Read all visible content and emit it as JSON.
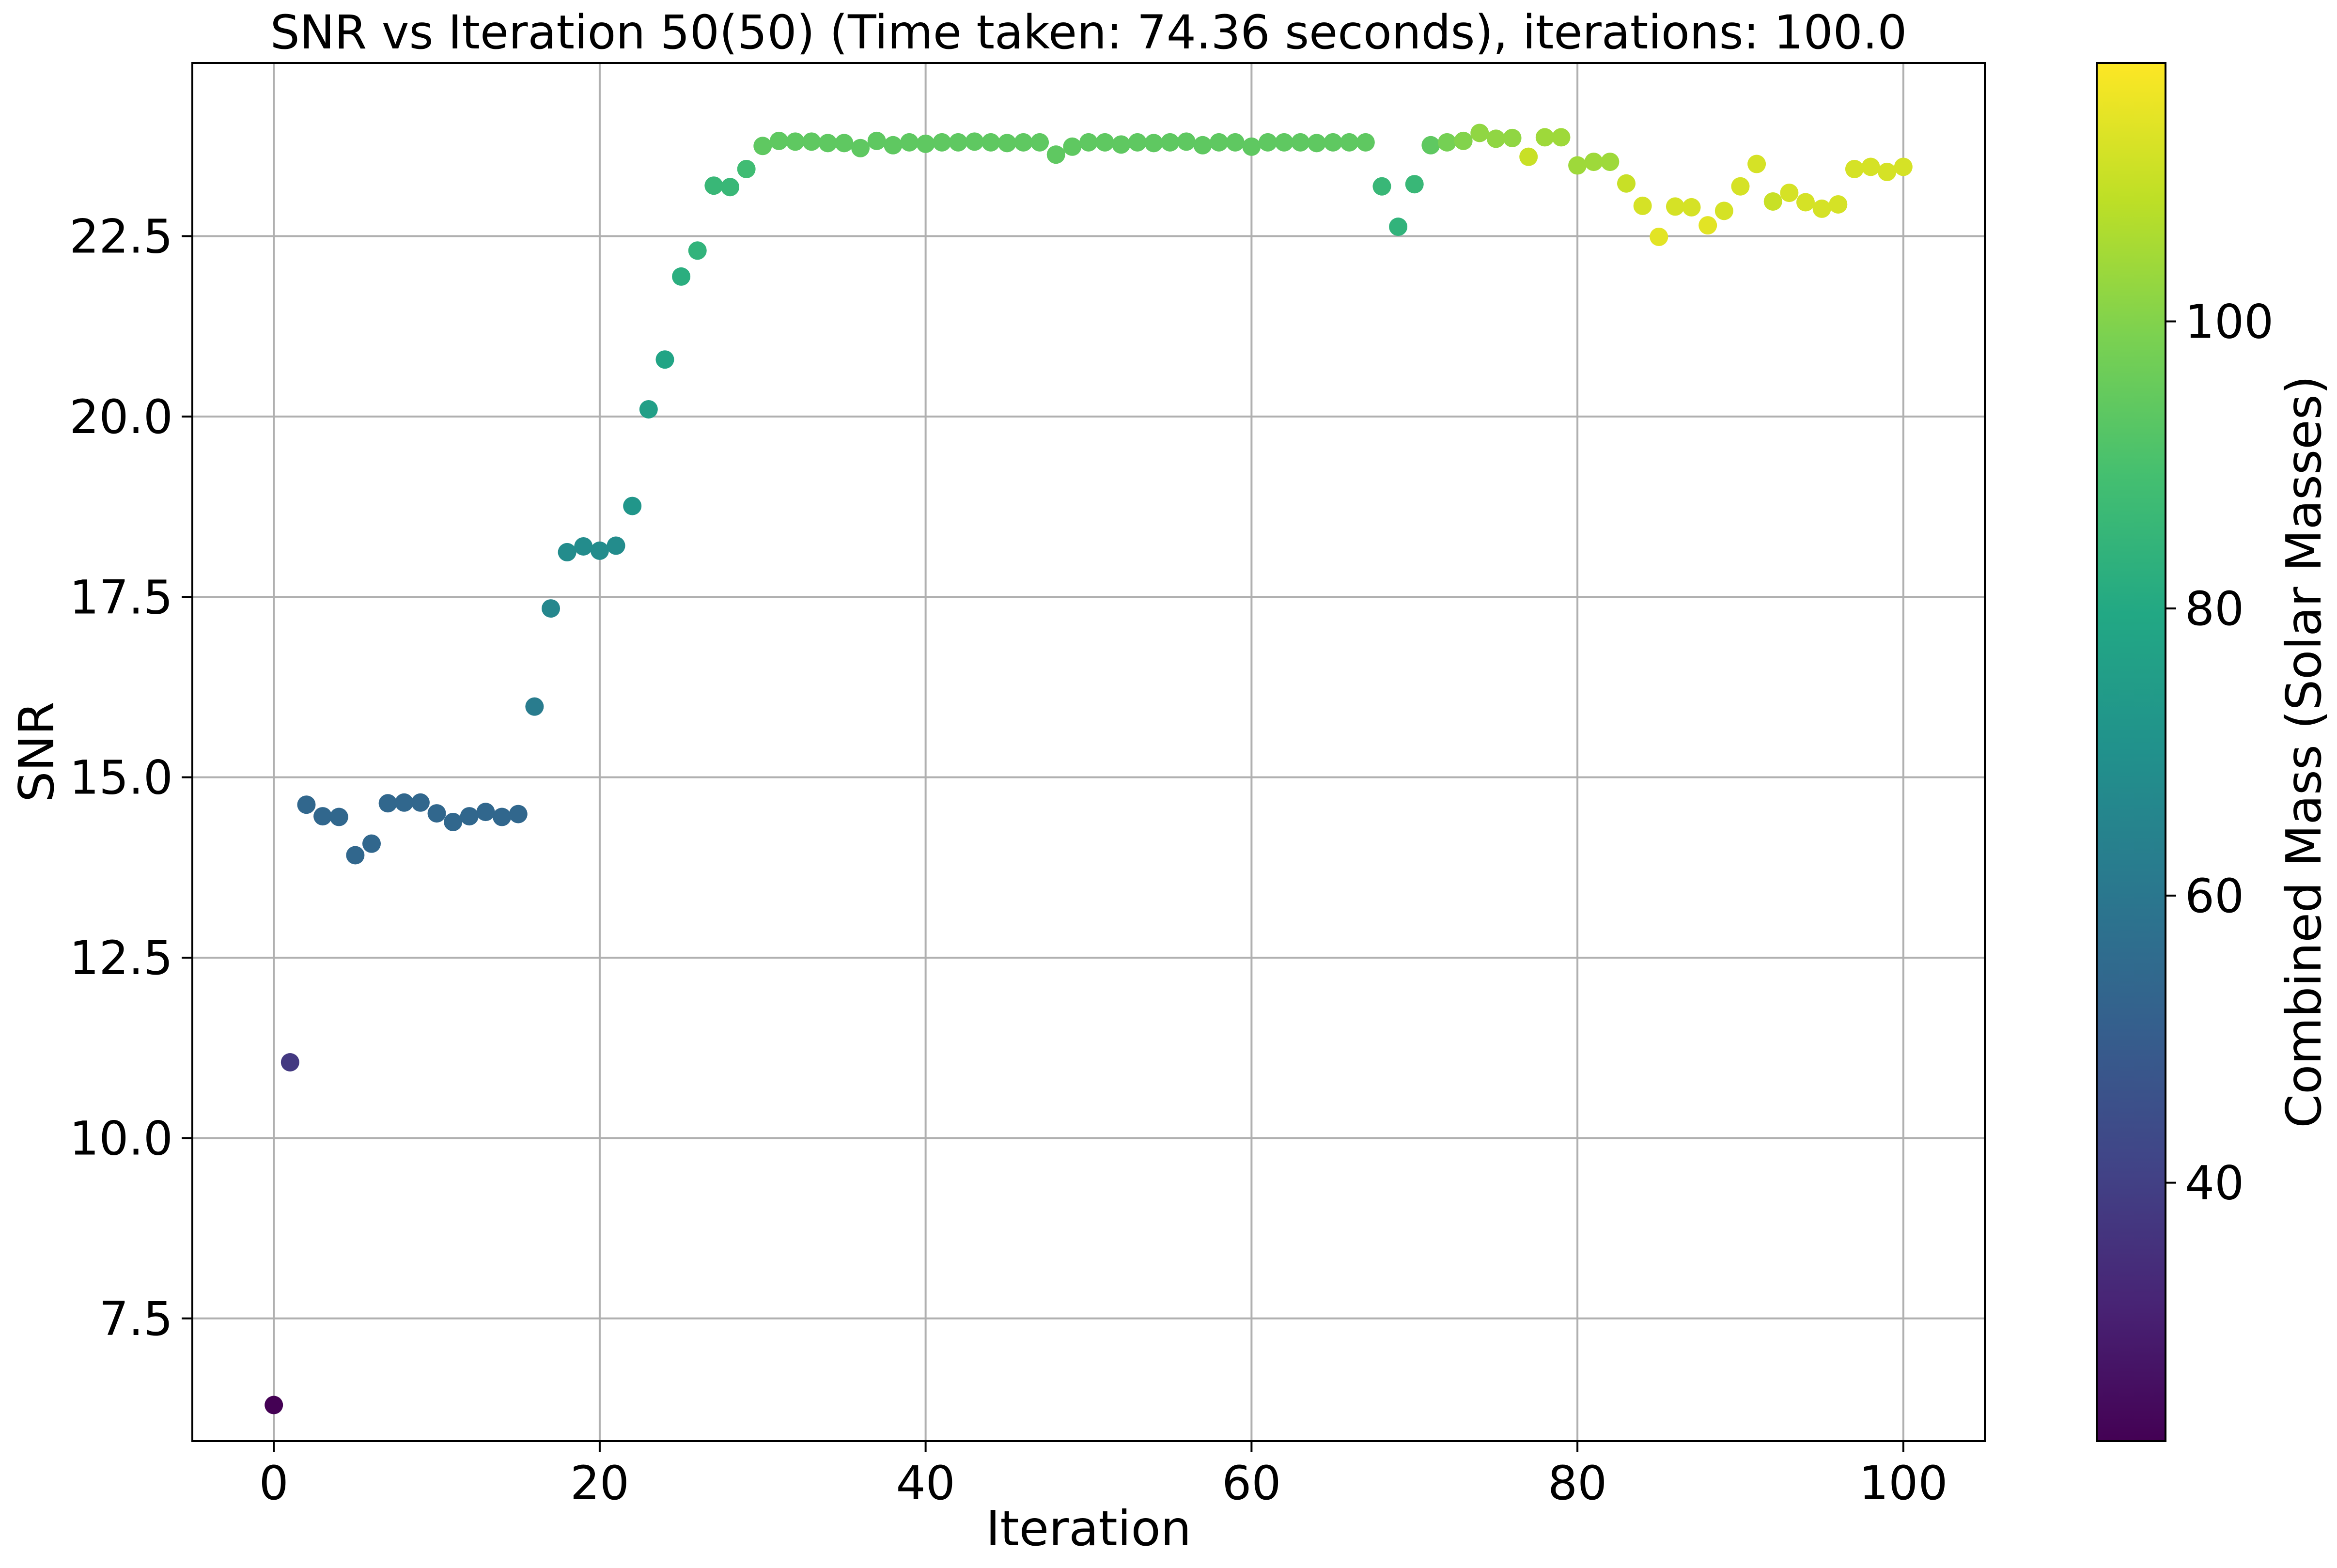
{
  "chart_data": {
    "type": "scatter",
    "title": "SNR vs Iteration 50(50) (Time taken: 74.36 seconds), iterations: 100.0",
    "xlabel": "Iteration",
    "ylabel": "SNR",
    "xlim": [
      -5,
      105
    ],
    "ylim": [
      5.8,
      24.9
    ],
    "xticks": [
      0,
      20,
      40,
      60,
      80,
      100
    ],
    "xtick_labels": [
      "0",
      "20",
      "40",
      "60",
      "80",
      "100"
    ],
    "yticks": [
      7.5,
      10.0,
      12.5,
      15.0,
      17.5,
      20.0,
      22.5
    ],
    "ytick_labels": [
      "7.5",
      "10.0",
      "12.5",
      "15.0",
      "17.5",
      "20.0",
      "22.5"
    ],
    "grid": true,
    "colormap": "viridis",
    "colorbar": {
      "label": "Combined Mass (Solar Masses)",
      "range": [
        22,
        118
      ],
      "ticks": [
        40,
        60,
        80,
        100
      ],
      "tick_labels": [
        "40",
        "60",
        "80",
        "100"
      ]
    },
    "x": [
      0,
      1,
      2,
      3,
      4,
      5,
      6,
      7,
      8,
      9,
      10,
      11,
      12,
      13,
      14,
      15,
      16,
      17,
      18,
      19,
      20,
      21,
      22,
      23,
      24,
      25,
      26,
      27,
      28,
      29,
      30,
      31,
      32,
      33,
      34,
      35,
      36,
      37,
      38,
      39,
      40,
      41,
      42,
      43,
      44,
      45,
      46,
      47,
      48,
      49,
      50,
      51,
      52,
      53,
      54,
      55,
      56,
      57,
      58,
      59,
      60,
      61,
      62,
      63,
      64,
      65,
      66,
      67,
      68,
      69,
      70,
      71,
      72,
      73,
      74,
      75,
      76,
      77,
      78,
      79,
      80,
      81,
      82,
      83,
      84,
      85,
      86,
      87,
      88,
      89,
      90,
      91,
      92,
      93,
      94,
      95,
      96,
      97,
      98,
      99,
      100
    ],
    "y": [
      6.3,
      11.05,
      14.62,
      14.46,
      14.45,
      13.92,
      14.08,
      14.64,
      14.65,
      14.65,
      14.5,
      14.38,
      14.46,
      14.52,
      14.45,
      14.49,
      15.98,
      17.34,
      18.12,
      18.2,
      18.14,
      18.21,
      18.76,
      20.1,
      20.79,
      21.94,
      22.3,
      23.2,
      23.18,
      23.43,
      23.75,
      23.82,
      23.81,
      23.81,
      23.79,
      23.79,
      23.72,
      23.82,
      23.76,
      23.8,
      23.78,
      23.8,
      23.8,
      23.81,
      23.8,
      23.79,
      23.8,
      23.8,
      23.63,
      23.74,
      23.8,
      23.8,
      23.77,
      23.8,
      23.79,
      23.8,
      23.81,
      23.76,
      23.8,
      23.8,
      23.74,
      23.8,
      23.8,
      23.8,
      23.79,
      23.8,
      23.8,
      23.8,
      23.19,
      22.63,
      23.22,
      23.76,
      23.8,
      23.82,
      23.93,
      23.85,
      23.86,
      23.6,
      23.87,
      23.87,
      23.48,
      23.53,
      23.53,
      23.23,
      22.92,
      22.49,
      22.91,
      22.9,
      22.65,
      22.85,
      23.19,
      23.5,
      22.98,
      23.1,
      22.97,
      22.88,
      22.94,
      23.43,
      23.46,
      23.39,
      23.46
    ],
    "mass": [
      22,
      38,
      54,
      54,
      54,
      54,
      54,
      54,
      54,
      54,
      54,
      54,
      54,
      54,
      54,
      54,
      62,
      66,
      68,
      68,
      68,
      68,
      72,
      76,
      78,
      82,
      84,
      86,
      86,
      88,
      94,
      94,
      94,
      94,
      94,
      94,
      94,
      94,
      94,
      94,
      94,
      94,
      94,
      94,
      94,
      94,
      94,
      94,
      94,
      94,
      94,
      94,
      94,
      94,
      94,
      94,
      94,
      94,
      94,
      94,
      94,
      94,
      94,
      94,
      94,
      94,
      94,
      94,
      86,
      84,
      86,
      94,
      98,
      100,
      102,
      102,
      102,
      110,
      104,
      104,
      104,
      104,
      104,
      110,
      112,
      114,
      112,
      112,
      114,
      112,
      112,
      112,
      110,
      112,
      112,
      112,
      112,
      112,
      112,
      112,
      112
    ]
  }
}
